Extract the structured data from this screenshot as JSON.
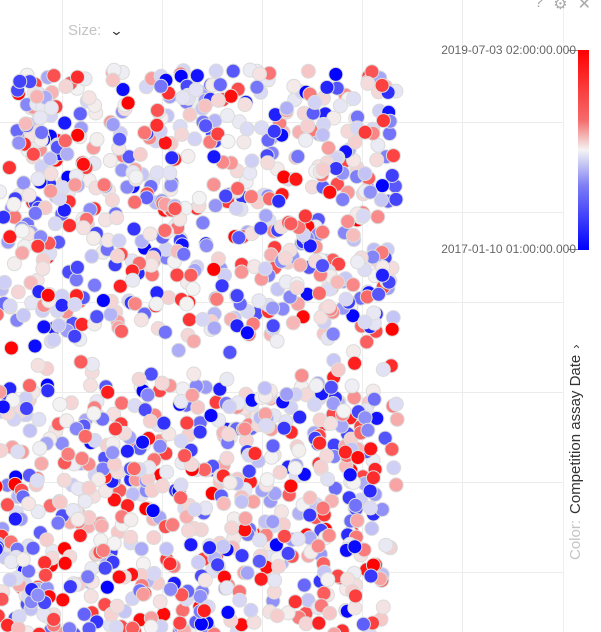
{
  "controls": {
    "size_label": "Size:",
    "size_chevron": "chevron-down-icon",
    "help_glyph": "?",
    "settings_glyph": "⚙",
    "close_glyph": "✕"
  },
  "legend": {
    "max_label": "2019-07-03 02:00:00.000",
    "min_label": "2017-01-10 01:00:00.000",
    "color_prefix": "Color:",
    "color_field": "Competition assay Date",
    "chevron": "chevron-right-icon",
    "colors": {
      "high": "#ff0000",
      "mid": "#f4f4f4",
      "low": "#0000ff"
    }
  },
  "chart_data": {
    "type": "scatter",
    "title": "",
    "xlabel": "",
    "ylabel": "",
    "color_scale": {
      "field": "Competition assay Date",
      "min": "2017-01-10 01:00:00.000",
      "max": "2019-07-03 02:00:00.000",
      "low_color": "#0000ff",
      "mid_color": "#f4f4f4",
      "high_color": "#ff0000"
    },
    "grid": true,
    "point_count_estimate": 1400
  }
}
